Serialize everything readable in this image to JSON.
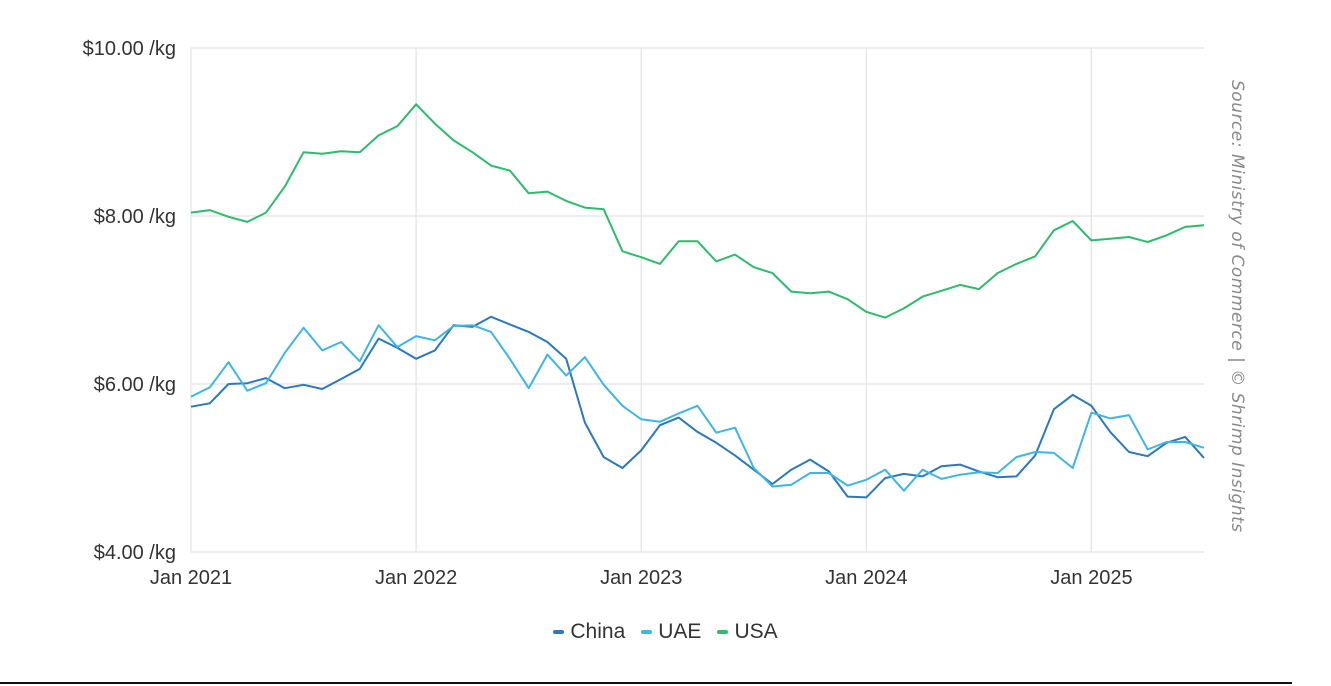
{
  "chart_data": {
    "type": "line",
    "title": "",
    "xlabel": "",
    "ylabel": "",
    "ylim": [
      4,
      10
    ],
    "y_ticks": [
      {
        "value": 10,
        "label": "$10.00 /kg"
      },
      {
        "value": 8,
        "label": "$8.00 /kg"
      },
      {
        "value": 6,
        "label": "$6.00 /kg"
      },
      {
        "value": 4,
        "label": "$4.00 /kg"
      }
    ],
    "x_start": "Jan 2021",
    "x_end": "Jul 2025",
    "x_ticks": [
      {
        "month_index": 0,
        "label": "Jan 2021"
      },
      {
        "month_index": 12,
        "label": "Jan 2022"
      },
      {
        "month_index": 24,
        "label": "Jan 2023"
      },
      {
        "month_index": 36,
        "label": "Jan 2024"
      },
      {
        "month_index": 48,
        "label": "Jan 2025"
      }
    ],
    "grid": true,
    "legend_position": "bottom-center",
    "series": [
      {
        "name": "China",
        "color": "#2a78c2",
        "values": [
          5.73,
          5.77,
          6.0,
          6.01,
          6.07,
          5.95,
          5.99,
          5.94,
          6.06,
          6.18,
          6.54,
          6.43,
          6.3,
          6.4,
          6.7,
          6.68,
          6.8,
          6.71,
          6.62,
          6.5,
          6.3,
          5.54,
          5.13,
          5.0,
          5.21,
          5.51,
          5.6,
          5.43,
          5.3,
          5.15,
          4.98,
          4.81,
          4.98,
          5.1,
          4.96,
          4.66,
          4.65,
          4.88,
          4.93,
          4.9,
          5.02,
          5.04,
          4.96,
          4.89,
          4.9,
          5.15,
          5.7,
          5.87,
          5.74,
          5.43,
          5.19,
          5.14,
          5.3,
          5.37,
          5.12
        ]
      },
      {
        "name": "UAE",
        "color": "#3db6e6",
        "values": [
          5.85,
          5.96,
          6.26,
          5.92,
          6.01,
          6.37,
          6.67,
          6.4,
          6.5,
          6.27,
          6.7,
          6.44,
          6.57,
          6.52,
          6.69,
          6.7,
          6.62,
          6.3,
          5.95,
          6.35,
          6.1,
          6.32,
          5.99,
          5.74,
          5.58,
          5.55,
          5.65,
          5.74,
          5.42,
          5.48,
          5.0,
          4.78,
          4.8,
          4.94,
          4.94,
          4.79,
          4.86,
          4.98,
          4.73,
          4.98,
          4.87,
          4.92,
          4.95,
          4.94,
          5.13,
          5.19,
          5.18,
          5.0,
          5.66,
          5.59,
          5.63,
          5.22,
          5.31,
          5.31,
          5.24
        ]
      },
      {
        "name": "USA",
        "color": "#2dbb6c",
        "values": [
          8.04,
          8.07,
          7.99,
          7.93,
          8.04,
          8.35,
          8.76,
          8.74,
          8.77,
          8.76,
          8.96,
          9.07,
          9.33,
          9.1,
          8.9,
          8.76,
          8.6,
          8.54,
          8.27,
          8.29,
          8.18,
          8.1,
          8.08,
          7.58,
          7.51,
          7.43,
          7.7,
          7.7,
          7.46,
          7.54,
          7.39,
          7.32,
          7.1,
          7.08,
          7.1,
          7.01,
          6.86,
          6.79,
          6.9,
          7.04,
          7.11,
          7.18,
          7.13,
          7.32,
          7.43,
          7.52,
          7.83,
          7.94,
          7.71,
          7.73,
          7.75,
          7.69,
          7.77,
          7.87,
          7.89
        ]
      }
    ],
    "source_note": "Source: Ministry of Commerce | © Shrimp Insights"
  }
}
